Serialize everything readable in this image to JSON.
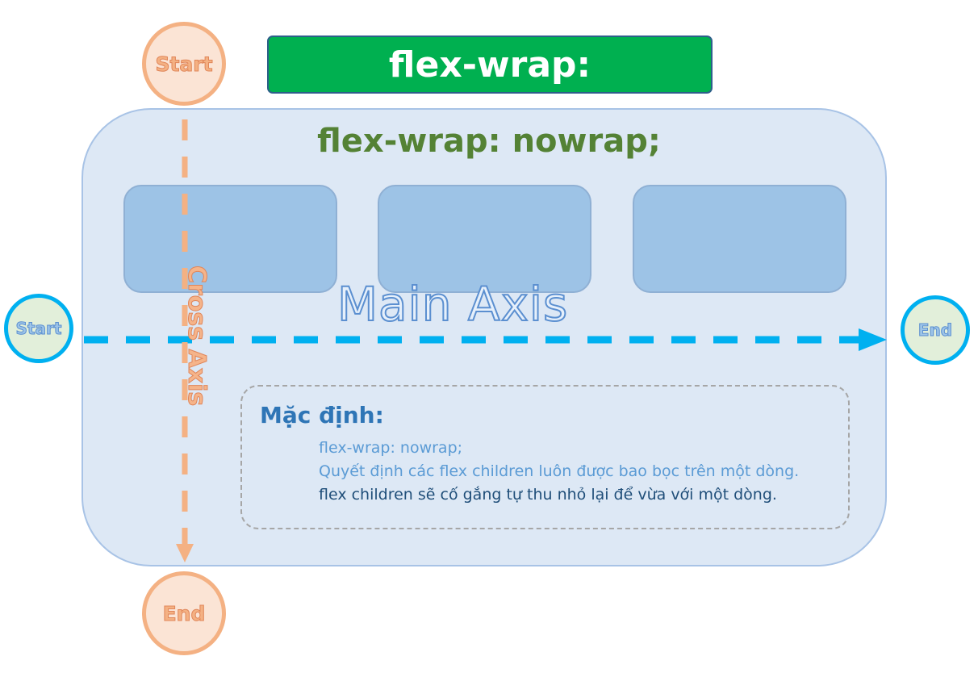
{
  "title": "flex-wrap:",
  "container": {
    "title": "flex-wrap: nowrap;",
    "children": [
      "",
      "",
      ""
    ]
  },
  "axes": {
    "main_axis_label": "Main Axis",
    "cross_axis_label": "Cross Axis",
    "main_start": "Start",
    "main_end": "End",
    "cross_start": "Start",
    "cross_end": "End"
  },
  "note": {
    "heading": "Mặc định:",
    "line1": "flex-wrap: nowrap;",
    "line2": "Quyết định các flex children luôn được bao bọc trên một dòng.",
    "line3": "flex children sẽ cố gắng tự thu nhỏ lại để vừa với một dòng."
  },
  "colors": {
    "banner": "#00b050",
    "container": "#dde8f5",
    "flex_child": "#9dc3e6",
    "main_axis": "#00b0f0",
    "cross_axis": "#f4b183",
    "container_title": "#548235"
  }
}
